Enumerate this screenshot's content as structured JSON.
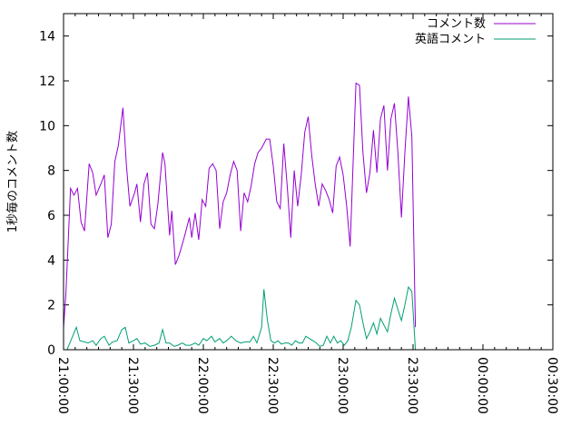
{
  "chart_data": {
    "type": "line",
    "ylabel": "1秒毎のコメント数",
    "xlabel": "",
    "xlim": [
      "21:00:00",
      "00:30:00"
    ],
    "ylim": [
      0,
      15
    ],
    "grid": false,
    "legend_position": "top-right",
    "x_ticks": [
      "21:00:00",
      "21:30:00",
      "22:00:00",
      "22:30:00",
      "23:00:00",
      "23:30:00",
      "00:00:00",
      "00:30:00"
    ],
    "y_ticks": [
      "0",
      "2",
      "4",
      "6",
      "8",
      "10",
      "12",
      "14"
    ],
    "series": [
      {
        "name": "コメント数",
        "color": "#9400d3",
        "points": [
          [
            "21:00:00",
            1.0
          ],
          [
            "21:01:00",
            2.5
          ],
          [
            "21:03:00",
            7.2
          ],
          [
            "21:04:30",
            6.9
          ],
          [
            "21:06:00",
            7.2
          ],
          [
            "21:07:30",
            5.7
          ],
          [
            "21:09:00",
            5.3
          ],
          [
            "21:11:00",
            8.3
          ],
          [
            "21:12:30",
            7.9
          ],
          [
            "21:14:00",
            6.9
          ],
          [
            "21:16:00",
            7.4
          ],
          [
            "21:17:30",
            7.8
          ],
          [
            "21:19:00",
            5.0
          ],
          [
            "21:20:30",
            5.6
          ],
          [
            "21:22:00",
            8.4
          ],
          [
            "21:23:30",
            9.1
          ],
          [
            "21:25:30",
            10.8
          ],
          [
            "21:27:00",
            8.2
          ],
          [
            "21:28:30",
            6.4
          ],
          [
            "21:30:30",
            7.0
          ],
          [
            "21:31:30",
            7.4
          ],
          [
            "21:33:00",
            5.7
          ],
          [
            "21:34:30",
            7.4
          ],
          [
            "21:36:00",
            7.9
          ],
          [
            "21:37:30",
            5.6
          ],
          [
            "21:39:00",
            5.4
          ],
          [
            "21:40:30",
            6.5
          ],
          [
            "21:42:30",
            8.8
          ],
          [
            "21:43:30",
            8.3
          ],
          [
            "21:45:30",
            5.1
          ],
          [
            "21:46:30",
            6.2
          ],
          [
            "21:48:00",
            3.8
          ],
          [
            "21:49:30",
            4.2
          ],
          [
            "21:51:30",
            4.9
          ],
          [
            "21:54:00",
            5.9
          ],
          [
            "21:55:00",
            5.0
          ],
          [
            "21:56:30",
            6.1
          ],
          [
            "21:58:00",
            4.9
          ],
          [
            "21:59:30",
            6.7
          ],
          [
            "22:01:00",
            6.4
          ],
          [
            "22:02:30",
            8.1
          ],
          [
            "22:04:00",
            8.3
          ],
          [
            "22:05:30",
            8.0
          ],
          [
            "22:07:00",
            5.4
          ],
          [
            "22:08:30",
            6.6
          ],
          [
            "22:10:00",
            7.0
          ],
          [
            "22:11:30",
            7.8
          ],
          [
            "22:13:00",
            8.4
          ],
          [
            "22:14:30",
            8.0
          ],
          [
            "22:16:00",
            5.3
          ],
          [
            "22:17:30",
            7.0
          ],
          [
            "22:19:00",
            6.6
          ],
          [
            "22:20:30",
            7.3
          ],
          [
            "22:22:00",
            8.3
          ],
          [
            "22:23:30",
            8.8
          ],
          [
            "22:25:00",
            9.0
          ],
          [
            "22:27:00",
            9.4
          ],
          [
            "22:28:30",
            9.4
          ],
          [
            "22:30:00",
            8.2
          ],
          [
            "22:31:30",
            6.6
          ],
          [
            "22:33:00",
            6.3
          ],
          [
            "22:34:30",
            9.2
          ],
          [
            "22:36:00",
            7.3
          ],
          [
            "22:37:30",
            5.0
          ],
          [
            "22:39:00",
            8.0
          ],
          [
            "22:40:30",
            6.4
          ],
          [
            "22:42:00",
            7.8
          ],
          [
            "22:43:30",
            9.7
          ],
          [
            "22:45:00",
            10.4
          ],
          [
            "22:46:30",
            8.7
          ],
          [
            "22:48:00",
            7.4
          ],
          [
            "22:49:30",
            6.4
          ],
          [
            "22:51:00",
            7.4
          ],
          [
            "22:52:30",
            7.1
          ],
          [
            "22:54:00",
            6.7
          ],
          [
            "22:55:30",
            6.1
          ],
          [
            "22:57:00",
            8.2
          ],
          [
            "22:58:30",
            8.6
          ],
          [
            "23:00:00",
            7.8
          ],
          [
            "23:01:30",
            6.4
          ],
          [
            "23:03:00",
            4.6
          ],
          [
            "23:05:30",
            11.9
          ],
          [
            "23:07:00",
            11.8
          ],
          [
            "23:08:30",
            8.8
          ],
          [
            "23:10:00",
            7.0
          ],
          [
            "23:11:30",
            7.9
          ],
          [
            "23:13:00",
            9.8
          ],
          [
            "23:14:30",
            7.9
          ],
          [
            "23:16:00",
            10.3
          ],
          [
            "23:17:30",
            10.9
          ],
          [
            "23:19:00",
            8.0
          ],
          [
            "23:20:30",
            10.3
          ],
          [
            "23:22:00",
            11.0
          ],
          [
            "23:23:30",
            8.8
          ],
          [
            "23:25:00",
            5.9
          ],
          [
            "23:26:30",
            8.8
          ],
          [
            "23:28:00",
            11.3
          ],
          [
            "23:29:30",
            9.5
          ],
          [
            "23:31:00",
            1.0
          ]
        ]
      },
      {
        "name": "英語コメント",
        "color": "#009e73",
        "points": [
          [
            "21:00:00",
            0.0
          ],
          [
            "21:01:30",
            0.0
          ],
          [
            "21:03:30",
            0.5
          ],
          [
            "21:05:30",
            1.0
          ],
          [
            "21:07:00",
            0.4
          ],
          [
            "21:09:00",
            0.35
          ],
          [
            "21:10:30",
            0.3
          ],
          [
            "21:12:30",
            0.4
          ],
          [
            "21:14:00",
            0.2
          ],
          [
            "21:16:00",
            0.5
          ],
          [
            "21:17:30",
            0.6
          ],
          [
            "21:19:30",
            0.2
          ],
          [
            "21:21:00",
            0.35
          ],
          [
            "21:23:00",
            0.4
          ],
          [
            "21:25:00",
            0.9
          ],
          [
            "21:26:30",
            1.0
          ],
          [
            "21:28:00",
            0.3
          ],
          [
            "21:30:00",
            0.4
          ],
          [
            "21:31:30",
            0.5
          ],
          [
            "21:33:00",
            0.25
          ],
          [
            "21:35:00",
            0.3
          ],
          [
            "21:37:00",
            0.15
          ],
          [
            "21:39:00",
            0.2
          ],
          [
            "21:41:00",
            0.3
          ],
          [
            "21:42:30",
            0.9
          ],
          [
            "21:44:00",
            0.3
          ],
          [
            "21:45:30",
            0.3
          ],
          [
            "21:47:30",
            0.15
          ],
          [
            "21:49:00",
            0.2
          ],
          [
            "21:51:00",
            0.3
          ],
          [
            "21:52:30",
            0.2
          ],
          [
            "21:54:30",
            0.2
          ],
          [
            "21:56:30",
            0.3
          ],
          [
            "21:58:00",
            0.2
          ],
          [
            "22:00:00",
            0.5
          ],
          [
            "22:01:30",
            0.4
          ],
          [
            "22:03:30",
            0.6
          ],
          [
            "22:05:00",
            0.35
          ],
          [
            "22:07:00",
            0.5
          ],
          [
            "22:08:30",
            0.3
          ],
          [
            "22:10:00",
            0.4
          ],
          [
            "22:12:00",
            0.6
          ],
          [
            "22:14:00",
            0.4
          ],
          [
            "22:16:00",
            0.3
          ],
          [
            "22:18:00",
            0.35
          ],
          [
            "22:20:00",
            0.35
          ],
          [
            "22:21:30",
            0.6
          ],
          [
            "22:23:00",
            0.3
          ],
          [
            "22:25:00",
            1.0
          ],
          [
            "22:26:00",
            2.7
          ],
          [
            "22:27:30",
            1.3
          ],
          [
            "22:29:00",
            0.4
          ],
          [
            "22:30:30",
            0.3
          ],
          [
            "22:32:00",
            0.4
          ],
          [
            "22:33:30",
            0.25
          ],
          [
            "22:35:00",
            0.3
          ],
          [
            "22:36:30",
            0.3
          ],
          [
            "22:38:00",
            0.2
          ],
          [
            "22:39:30",
            0.4
          ],
          [
            "22:41:00",
            0.3
          ],
          [
            "22:42:30",
            0.3
          ],
          [
            "22:44:00",
            0.6
          ],
          [
            "22:45:30",
            0.5
          ],
          [
            "22:47:00",
            0.4
          ],
          [
            "22:48:30",
            0.3
          ],
          [
            "22:50:00",
            0.15
          ],
          [
            "22:51:30",
            0.2
          ],
          [
            "22:53:00",
            0.6
          ],
          [
            "22:54:30",
            0.3
          ],
          [
            "22:56:00",
            0.6
          ],
          [
            "22:57:30",
            0.3
          ],
          [
            "22:59:00",
            0.4
          ],
          [
            "23:00:30",
            0.2
          ],
          [
            "23:02:00",
            0.4
          ],
          [
            "23:03:30",
            1.0
          ],
          [
            "23:05:30",
            2.2
          ],
          [
            "23:07:00",
            2.0
          ],
          [
            "23:08:30",
            1.2
          ],
          [
            "23:10:00",
            0.5
          ],
          [
            "23:11:30",
            0.8
          ],
          [
            "23:13:00",
            1.2
          ],
          [
            "23:14:30",
            0.7
          ],
          [
            "23:16:00",
            1.4
          ],
          [
            "23:17:30",
            1.1
          ],
          [
            "23:19:00",
            0.8
          ],
          [
            "23:20:30",
            1.6
          ],
          [
            "23:22:00",
            2.3
          ],
          [
            "23:23:30",
            1.8
          ],
          [
            "23:25:00",
            1.3
          ],
          [
            "23:26:30",
            2.0
          ],
          [
            "23:28:00",
            2.8
          ],
          [
            "23:29:30",
            2.6
          ],
          [
            "23:31:00",
            0.0
          ]
        ]
      }
    ]
  }
}
